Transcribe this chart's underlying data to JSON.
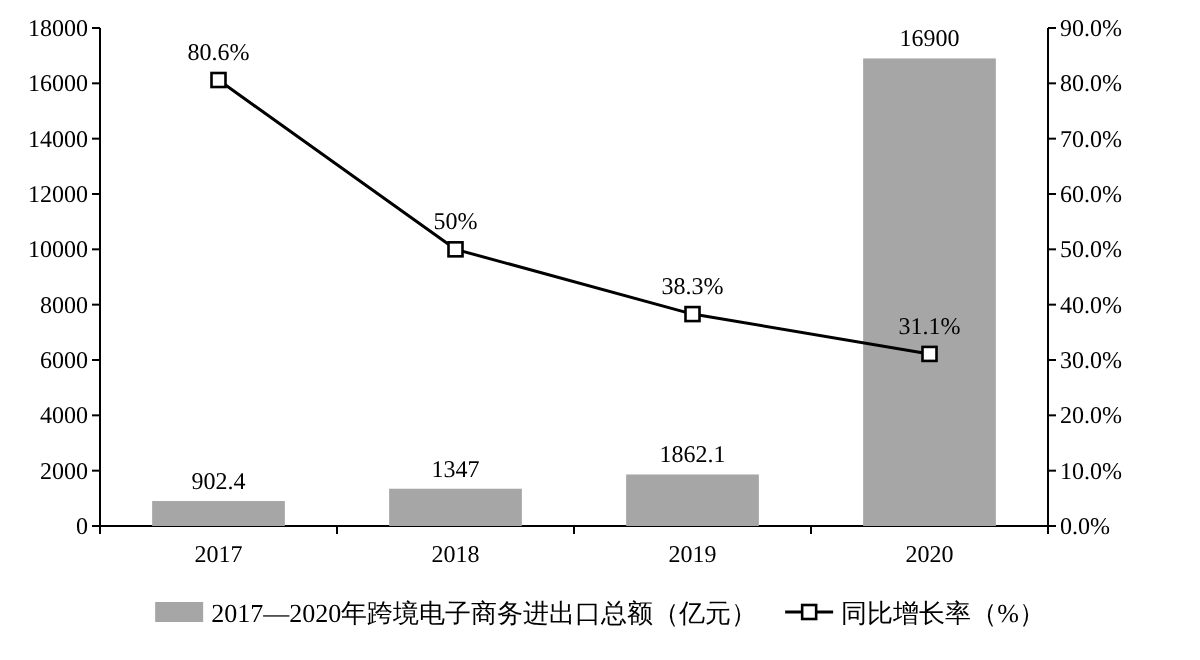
{
  "chart_data": {
    "type": "bar",
    "categories": [
      "2017",
      "2018",
      "2019",
      "2020"
    ],
    "series": [
      {
        "name": "2017—2020年跨境电子商务进出口总额（亿元）",
        "color": "#a6a6a6",
        "values": [
          902.4,
          1347,
          1862.1,
          16900
        ],
        "value_labels": [
          "902.4",
          "1347",
          "1862.1",
          "16900"
        ]
      },
      {
        "name": "同比增长率（%）",
        "type": "line",
        "axis": "y2",
        "color": "#000000",
        "marker": "square",
        "values": [
          80.6,
          50,
          38.3,
          31.1
        ],
        "value_labels": [
          "80.6%",
          "50%",
          "38.3%",
          "31.1%"
        ]
      }
    ],
    "ylim": [
      0,
      18000
    ],
    "yticks": [
      0,
      2000,
      4000,
      6000,
      8000,
      10000,
      12000,
      14000,
      16000,
      18000
    ],
    "y2lim": [
      0,
      90
    ],
    "y2ticks": [
      {
        "value": 0,
        "label": "0.0%"
      },
      {
        "value": 10,
        "label": "10.0%"
      },
      {
        "value": 20,
        "label": "20.0%"
      },
      {
        "value": 30,
        "label": "30.0%"
      },
      {
        "value": 40,
        "label": "40.0%"
      },
      {
        "value": 50,
        "label": "50.0%"
      },
      {
        "value": 60,
        "label": "60.0%"
      },
      {
        "value": 70,
        "label": "70.0%"
      },
      {
        "value": 80,
        "label": "80.0%"
      },
      {
        "value": 90,
        "label": "90.0%"
      }
    ],
    "legend": "bottom"
  }
}
